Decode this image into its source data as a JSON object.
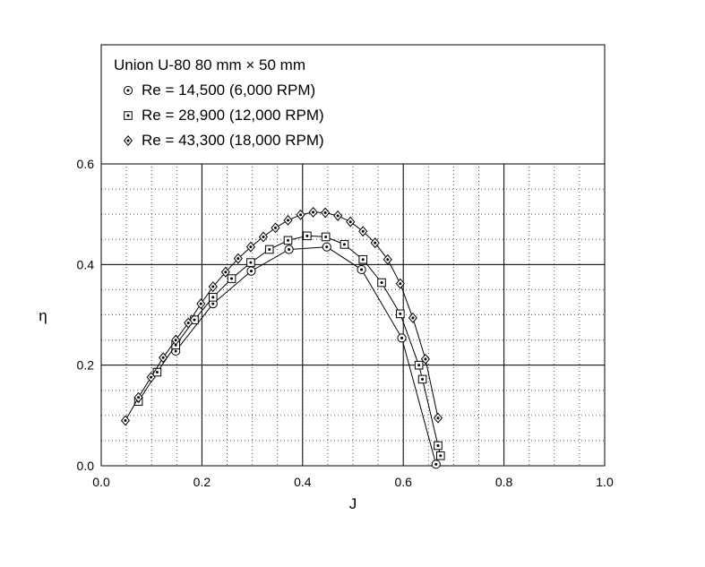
{
  "chart_data": {
    "type": "line",
    "title": "Union U-80 80 mm × 50 mm",
    "xlabel": "J",
    "ylabel": "η",
    "xlim": [
      0.0,
      1.0
    ],
    "ylim": [
      0.0,
      0.6
    ],
    "x_ticks": [
      "0.0",
      "0.2",
      "0.4",
      "0.6",
      "0.8",
      "1.0"
    ],
    "y_ticks": [
      "0.0",
      "0.2",
      "0.4",
      "0.6"
    ],
    "grid": "major solid, minor dotted",
    "legend_position": "top",
    "series": [
      {
        "name": "Re = 14,500 (6,000 RPM)",
        "marker": "circle-dot",
        "x": [
          0.148,
          0.222,
          0.298,
          0.373,
          0.448,
          0.517,
          0.597,
          0.665
        ],
        "y": [
          0.228,
          0.322,
          0.387,
          0.43,
          0.435,
          0.39,
          0.254,
          0.003
        ]
      },
      {
        "name": "Re = 28,900 (12,000 RPM)",
        "marker": "square-dot",
        "x": [
          0.074,
          0.111,
          0.148,
          0.185,
          0.222,
          0.259,
          0.297,
          0.334,
          0.371,
          0.409,
          0.446,
          0.483,
          0.52,
          0.557,
          0.594,
          0.631,
          0.638,
          0.669,
          0.674
        ],
        "y": [
          0.128,
          0.186,
          0.24,
          0.29,
          0.335,
          0.372,
          0.404,
          0.43,
          0.448,
          0.457,
          0.455,
          0.44,
          0.41,
          0.364,
          0.302,
          0.2,
          0.172,
          0.04,
          0.02
        ]
      },
      {
        "name": "Re = 43,300 (18,000 RPM)",
        "marker": "diamond-dot",
        "x": [
          0.048,
          0.074,
          0.099,
          0.123,
          0.148,
          0.173,
          0.198,
          0.222,
          0.247,
          0.272,
          0.297,
          0.322,
          0.346,
          0.371,
          0.396,
          0.421,
          0.445,
          0.47,
          0.495,
          0.52,
          0.544,
          0.569,
          0.594,
          0.619,
          0.644,
          0.669
        ],
        "y": [
          0.09,
          0.136,
          0.176,
          0.215,
          0.25,
          0.284,
          0.322,
          0.356,
          0.385,
          0.412,
          0.435,
          0.455,
          0.473,
          0.488,
          0.499,
          0.504,
          0.503,
          0.497,
          0.485,
          0.466,
          0.443,
          0.41,
          0.362,
          0.294,
          0.212,
          0.095
        ]
      }
    ]
  }
}
